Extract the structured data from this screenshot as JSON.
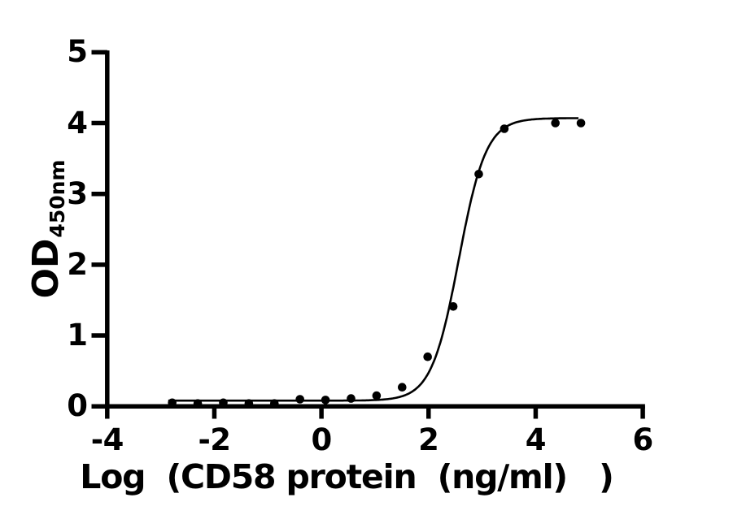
{
  "chart_data": {
    "type": "scatter",
    "title": "",
    "xlabel": "Log  (CD58 protein  (ng/ml)   )",
    "ylabel_main": "OD",
    "ylabel_sub": "450nm",
    "xlim": [
      -4,
      6
    ],
    "ylim": [
      0,
      5
    ],
    "x_ticks": [
      -4,
      -2,
      0,
      2,
      4,
      6
    ],
    "y_ticks": [
      0,
      1,
      2,
      3,
      4,
      5
    ],
    "grid": false,
    "legend": null,
    "points": {
      "x": [
        -2.787,
        -2.31,
        -1.833,
        -1.356,
        -0.879,
        -0.402,
        0.075,
        0.552,
        1.029,
        1.506,
        1.983,
        2.46,
        2.937,
        3.414,
        4.368,
        4.845
      ],
      "y": [
        0.05,
        0.04,
        0.05,
        0.04,
        0.04,
        0.1,
        0.09,
        0.11,
        0.15,
        0.27,
        0.7,
        1.41,
        3.28,
        3.92,
        4.0,
        4.0
      ]
    },
    "curve_fit": {
      "model": "4PL",
      "bottom": 0.08,
      "top": 4.07,
      "log_ec50": 2.565,
      "hill": 1.7,
      "x_start": -2.86,
      "x_end": 4.8
    },
    "colors": {
      "data": "#000000",
      "background": "#ffffff"
    }
  }
}
